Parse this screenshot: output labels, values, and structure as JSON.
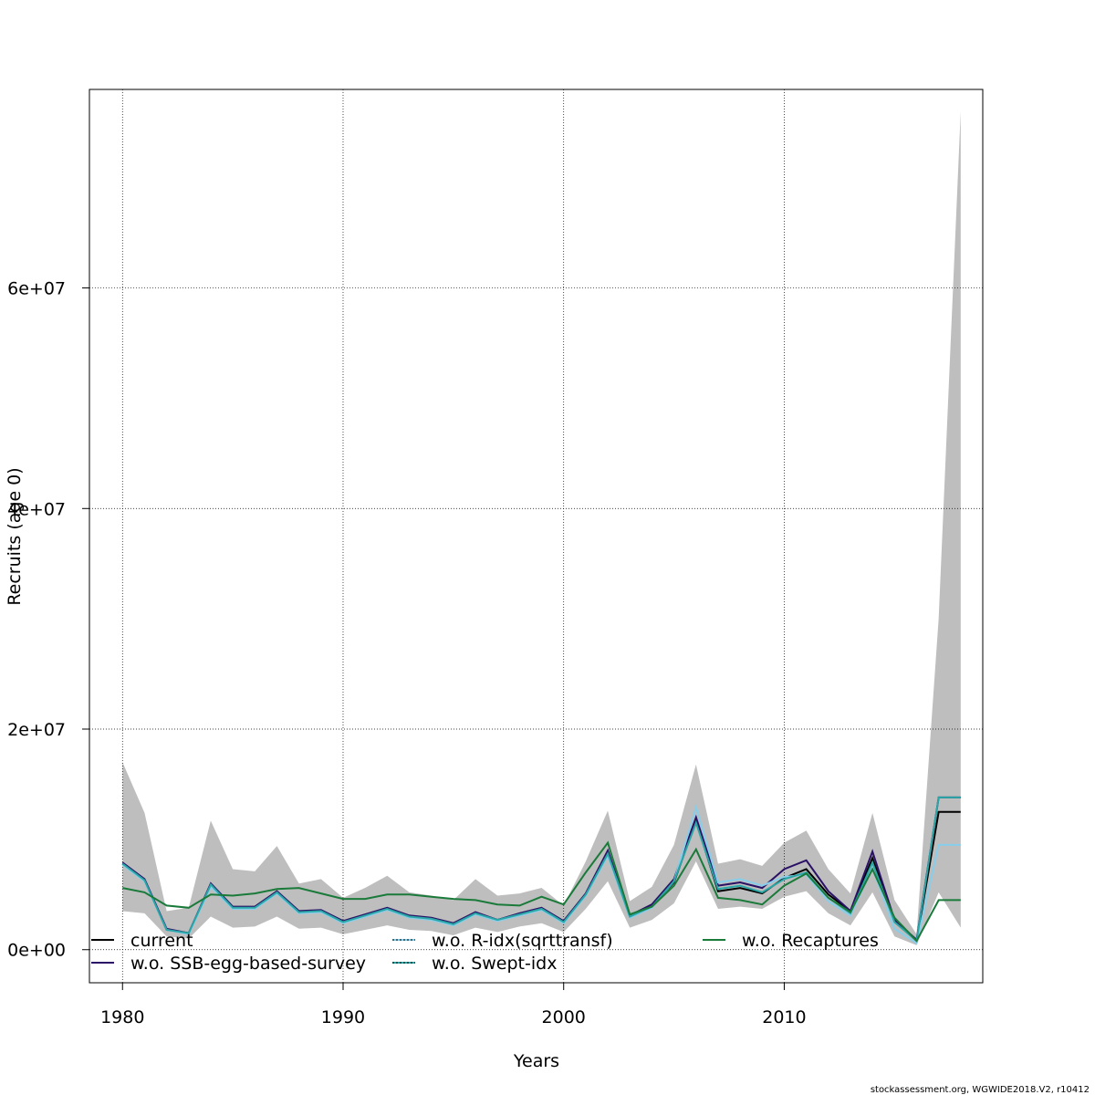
{
  "chart_data": {
    "type": "line",
    "title": "",
    "xlabel": "Years",
    "ylabel": "Recruits (age 0)",
    "xlim": [
      1978.5,
      2019
    ],
    "ylim": [
      -3000000,
      78000000
    ],
    "x_ticks": [
      1980,
      1990,
      2000,
      2010
    ],
    "x_tick_labels": [
      "1980",
      "1990",
      "2000",
      "2010"
    ],
    "y_ticks": [
      0,
      20000000,
      40000000,
      60000000
    ],
    "y_tick_labels": [
      "0e+00",
      "2e+07",
      "4e+07",
      "6e+07"
    ],
    "grid": true,
    "legend_position": "bottom",
    "x": [
      1980,
      1981,
      1982,
      1983,
      1984,
      1985,
      1986,
      1987,
      1988,
      1989,
      1990,
      1991,
      1992,
      1993,
      1994,
      1995,
      1996,
      1997,
      1998,
      1999,
      2000,
      2001,
      2002,
      2003,
      2004,
      2005,
      2006,
      2007,
      2008,
      2009,
      2010,
      2011,
      2012,
      2013,
      2014,
      2015,
      2016,
      2017,
      2018
    ],
    "band": {
      "color": "#bebebe",
      "lower": [
        3500000,
        3300000,
        1200000,
        1000000,
        3000000,
        2000000,
        2100000,
        3000000,
        1900000,
        2000000,
        1400000,
        1800000,
        2200000,
        1800000,
        1700000,
        1300000,
        2000000,
        1600000,
        2100000,
        2400000,
        1600000,
        3700000,
        6200000,
        2000000,
        2700000,
        4200000,
        8000000,
        3700000,
        3900000,
        3700000,
        4800000,
        5300000,
        3300000,
        2200000,
        5200000,
        1200000,
        400000,
        5200000,
        2000000
      ],
      "upper": [
        17000000,
        12400000,
        3500000,
        3800000,
        11700000,
        7300000,
        7100000,
        9400000,
        6000000,
        6400000,
        4700000,
        5600000,
        6700000,
        5200000,
        4900000,
        4500000,
        6400000,
        4900000,
        5100000,
        5600000,
        4000000,
        8000000,
        12600000,
        4400000,
        5700000,
        9500000,
        16800000,
        7800000,
        8200000,
        7600000,
        9700000,
        10800000,
        7300000,
        5100000,
        12400000,
        4500000,
        1400000,
        30000000,
        76000000
      ]
    },
    "series": [
      {
        "name": "current",
        "color": "#000000",
        "dash": "",
        "step_last": true,
        "values": [
          7800000,
          6300000,
          1800000,
          1500000,
          5800000,
          3800000,
          3800000,
          5200000,
          3400000,
          3500000,
          2500000,
          3100000,
          3700000,
          3000000,
          2800000,
          2300000,
          3300000,
          2700000,
          3200000,
          3700000,
          2500000,
          5000000,
          8800000,
          3000000,
          3900000,
          6100000,
          11700000,
          5300000,
          5600000,
          5100000,
          6500000,
          7300000,
          5000000,
          3500000,
          8300000,
          2600000,
          800000,
          12500000,
          12500000
        ]
      },
      {
        "name": "w.o. SSB-egg-based-survey",
        "color": "#2a1166",
        "dash": "",
        "step_last": true,
        "values": [
          7900000,
          6400000,
          1900000,
          1500000,
          6000000,
          3900000,
          3900000,
          5300000,
          3500000,
          3600000,
          2600000,
          3200000,
          3800000,
          3100000,
          2900000,
          2400000,
          3400000,
          2700000,
          3300000,
          3800000,
          2600000,
          5100000,
          9000000,
          3100000,
          4100000,
          6400000,
          12000000,
          5800000,
          6100000,
          5600000,
          7300000,
          8100000,
          5300000,
          3500000,
          8900000,
          2700000,
          900000,
          13800000,
          13800000
        ]
      },
      {
        "name": "w.o. R-idx(sqrttransf)",
        "color": "#87ceeb",
        "dash": "3,3",
        "step_last": true,
        "values": [
          7700000,
          6200000,
          1800000,
          1400000,
          5700000,
          3700000,
          3700000,
          5100000,
          3300000,
          3400000,
          2400000,
          3000000,
          3600000,
          2900000,
          2700000,
          2200000,
          3200000,
          2600000,
          3100000,
          3600000,
          2400000,
          4900000,
          8500000,
          2900000,
          3800000,
          6200000,
          12900000,
          6100000,
          6400000,
          5800000,
          6600000,
          6800000,
          4400000,
          3100000,
          7400000,
          1900000,
          600000,
          9500000,
          9500000
        ]
      },
      {
        "name": "w.o. Swept-idx",
        "color": "#2aa6a6",
        "dash": "3,3",
        "step_last": true,
        "values": [
          7800000,
          6300000,
          1800000,
          1500000,
          5900000,
          3800000,
          3800000,
          5200000,
          3400000,
          3500000,
          2500000,
          3100000,
          3700000,
          3000000,
          2800000,
          2300000,
          3300000,
          2700000,
          3200000,
          3700000,
          2500000,
          5000000,
          8700000,
          3000000,
          3900000,
          6200000,
          11500000,
          5500000,
          5800000,
          5200000,
          6400000,
          7000000,
          4700000,
          3300000,
          7900000,
          2500000,
          800000,
          13800000,
          13800000
        ]
      },
      {
        "name": "w.o. Recaptures",
        "color": "#1a7a3a",
        "dash": "",
        "step_last": true,
        "values": [
          5600000,
          5200000,
          4000000,
          3800000,
          5000000,
          4900000,
          5100000,
          5500000,
          5600000,
          5100000,
          4600000,
          4600000,
          5000000,
          5000000,
          4800000,
          4600000,
          4500000,
          4100000,
          4000000,
          4800000,
          4100000,
          7000000,
          9700000,
          3200000,
          3900000,
          5800000,
          9100000,
          4700000,
          4500000,
          4100000,
          5800000,
          6900000,
          4700000,
          3400000,
          7300000,
          2900000,
          800000,
          4500000,
          4500000
        ]
      }
    ]
  },
  "legend": {
    "items": [
      {
        "label": "current"
      },
      {
        "label": "w.o. SSB-egg-based-survey"
      },
      {
        "label": "w.o. R-idx(sqrttransf)"
      },
      {
        "label": "w.o. Swept-idx"
      },
      {
        "label": "w.o. Recaptures"
      }
    ]
  },
  "footer": "stockassessment.org, WGWIDE2018.V2, r10412"
}
